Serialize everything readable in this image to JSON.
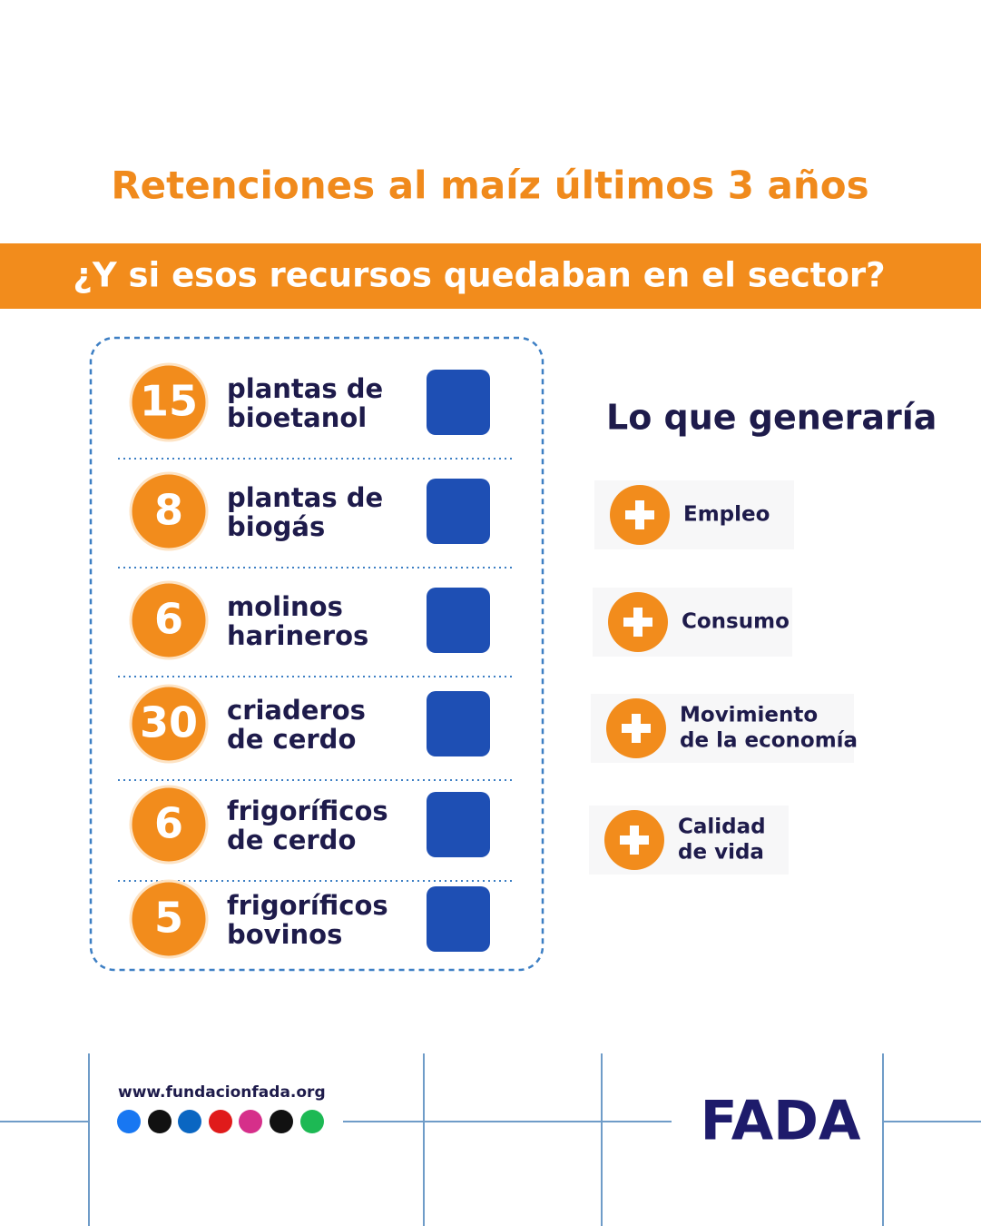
{
  "header": {
    "title": "Retenciones al maíz últimos 3 años",
    "banner": "¿Y si esos recursos quedaban en el sector?"
  },
  "items": [
    {
      "number": "15",
      "label": [
        "plantas de",
        "bioetanol"
      ]
    },
    {
      "number": "8",
      "label": [
        "plantas de",
        "biogás"
      ]
    },
    {
      "number": "6",
      "label": [
        "molinos",
        "harineros"
      ]
    },
    {
      "number": "30",
      "label": [
        "criaderos",
        "de cerdo"
      ]
    },
    {
      "number": "6",
      "label": [
        "frigoríficos",
        "de cerdo"
      ]
    },
    {
      "number": "5",
      "label": [
        "frigoríficos",
        "bovinos"
      ]
    }
  ],
  "effects": {
    "title": "Lo que generaría",
    "list": [
      [
        "Empleo"
      ],
      [
        "Consumo"
      ],
      [
        "Movimiento",
        "de la economía"
      ],
      [
        "Calidad",
        "de vida"
      ]
    ]
  },
  "footer": {
    "url": "www.fundacionfada.org",
    "logo": "FADA"
  }
}
